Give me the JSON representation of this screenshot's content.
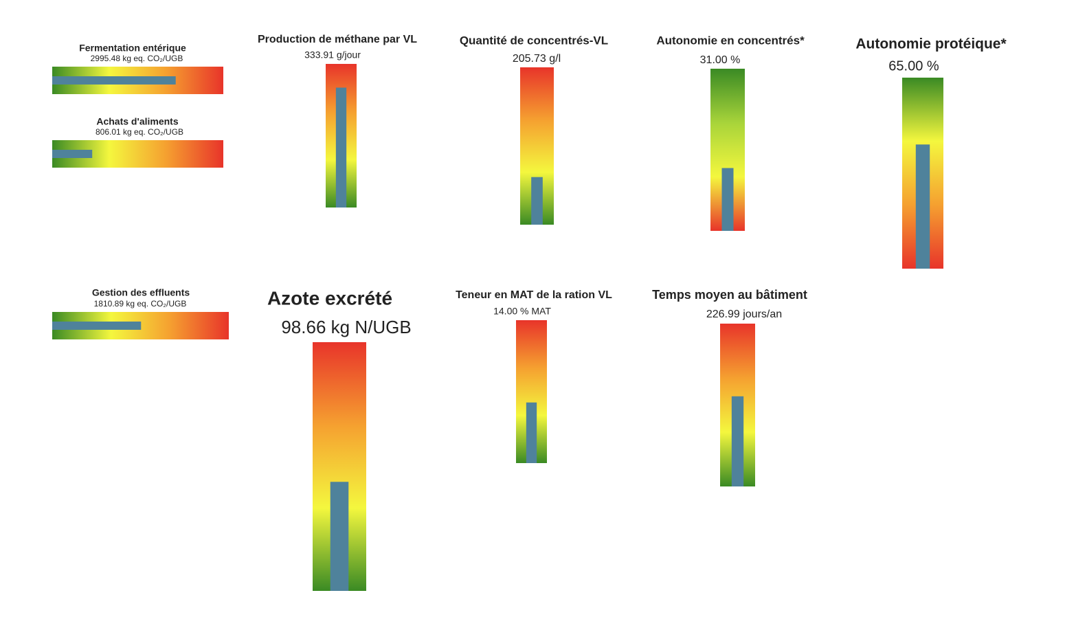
{
  "chart_data": [
    {
      "type": "bullet",
      "orientation": "horizontal",
      "title": "Fermentation entérique",
      "value": 2995.48,
      "value_label": "2995.48 kg eq. CO₂/UGB",
      "xlim": [
        0,
        4150
      ],
      "colors": [
        "#3a8a24",
        "#f4f73e",
        "#f5a030",
        "#e8342a"
      ],
      "bar_color": "#4f829b"
    },
    {
      "type": "bullet",
      "orientation": "horizontal",
      "title": "Achats d'aliments",
      "value": 806.01,
      "value_label": "806.01 kg eq. CO₂/UGB",
      "xlim": [
        0,
        3450
      ],
      "colors": [
        "#3a8a24",
        "#f4f73e",
        "#f5a030",
        "#e8342a"
      ],
      "bar_color": "#4f829b"
    },
    {
      "type": "bullet",
      "orientation": "horizontal",
      "title": "Gestion des effluents",
      "value": 1810.89,
      "value_label": "1810.89 kg eq. CO₂/UGB",
      "xlim": [
        0,
        3600
      ],
      "colors": [
        "#3a8a24",
        "#f4f73e",
        "#f5a030",
        "#e8342a"
      ],
      "bar_color": "#4f829b"
    },
    {
      "type": "bullet",
      "orientation": "vertical",
      "title": "Production de méthane par VL",
      "value": 333.91,
      "value_label": "333.91 g/jour",
      "ylim": [
        0,
        400
      ],
      "colors": [
        "#3a8a24",
        "#f4f73e",
        "#f5a030",
        "#e8342a"
      ],
      "bar_color": "#4f829b"
    },
    {
      "type": "bullet",
      "orientation": "vertical",
      "title": "Quantité de concentrés-VL",
      "value": 205.73,
      "value_label": "205.73 g/l",
      "ylim": [
        0,
        680
      ],
      "colors": [
        "#3a8a24",
        "#f4f73e",
        "#f5a030",
        "#e8342a"
      ],
      "bar_color": "#4f829b"
    },
    {
      "type": "bullet",
      "orientation": "vertical",
      "title": "Autonomie en concentrés*",
      "value": 31.0,
      "value_label": "31.00 %",
      "ylim": [
        0,
        80
      ],
      "colors": [
        "#e8342a",
        "#f4f73e",
        "#a8d43a",
        "#3a8a24"
      ],
      "bar_color": "#4f829b"
    },
    {
      "type": "bullet",
      "orientation": "vertical",
      "title": "Autonomie protéique*",
      "value": 65.0,
      "value_label": "65.00 %",
      "ylim": [
        0,
        100
      ],
      "colors": [
        "#e8342a",
        "#f5a030",
        "#f4f73e",
        "#3a8a24"
      ],
      "bar_color": "#4f829b"
    },
    {
      "type": "bullet",
      "orientation": "vertical",
      "title": "Azote excrété",
      "value": 98.66,
      "value_label": "98.66 kg N/UGB",
      "ylim": [
        0,
        225
      ],
      "colors": [
        "#3a8a24",
        "#f4f73e",
        "#f5a030",
        "#e8342a"
      ],
      "bar_color": "#4f829b"
    },
    {
      "type": "bullet",
      "orientation": "vertical",
      "title": "Teneur en MAT de la ration VL",
      "value": 14.0,
      "value_label": "14.00 % MAT",
      "ylim": [
        0,
        33
      ],
      "colors": [
        "#3a8a24",
        "#f4f73e",
        "#f5a030",
        "#e8342a"
      ],
      "bar_color": "#4f829b"
    },
    {
      "type": "bullet",
      "orientation": "vertical",
      "title": "Temps moyen au bâtiment",
      "value": 226.99,
      "value_label": "226.99 jours/an",
      "ylim": [
        0,
        410
      ],
      "colors": [
        "#3a8a24",
        "#f4f73e",
        "#f5a030",
        "#e8342a"
      ],
      "bar_color": "#4f829b"
    }
  ]
}
